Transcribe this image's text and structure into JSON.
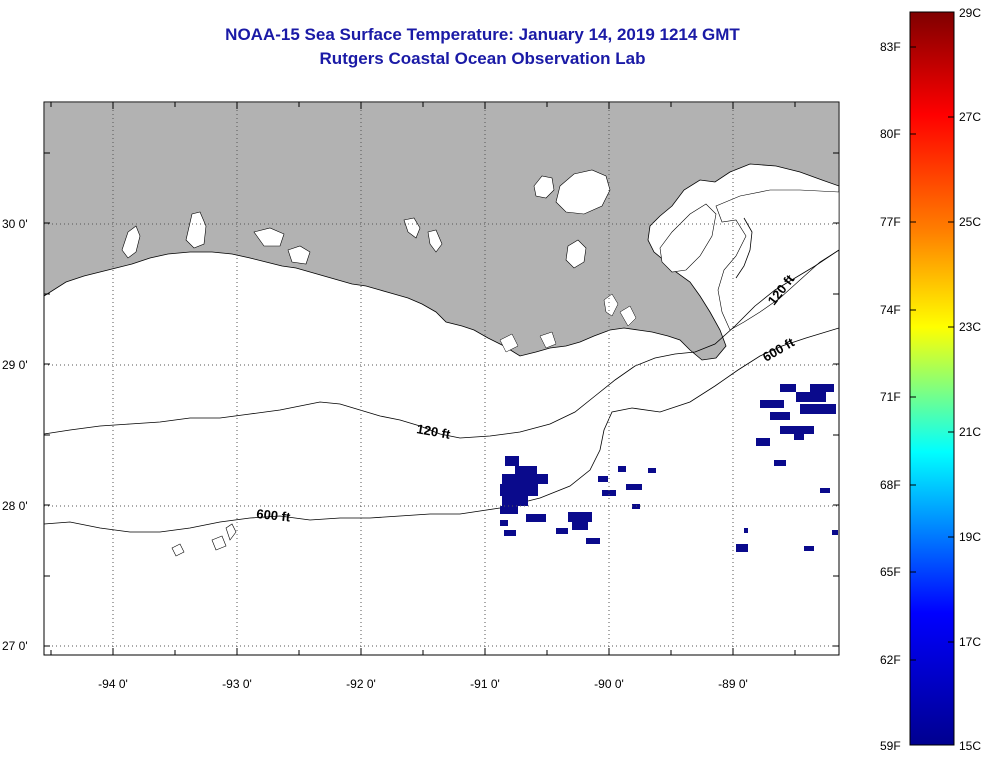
{
  "header": {
    "title": "NOAA-15 Sea Surface Temperature:  January 14, 2019 1214 GMT",
    "subtitle": "Rutgers Coastal Ocean Observation Lab"
  },
  "map": {
    "region": "Louisiana coast, northern Gulf of Mexico",
    "extent": {
      "lon": [
        -94.55,
        -88.0
      ],
      "lat": [
        26.95,
        30.85
      ]
    },
    "lat_ticks": [
      {
        "value": 30,
        "label": "30 0'"
      },
      {
        "value": 29,
        "label": "29 0'"
      },
      {
        "value": 28,
        "label": "28 0'"
      },
      {
        "value": 27,
        "label": "27 0'"
      }
    ],
    "lon_ticks": [
      {
        "value": -94,
        "label": "-94 0'"
      },
      {
        "value": -93,
        "label": "-93 0'"
      },
      {
        "value": -92,
        "label": "-92 0'"
      },
      {
        "value": -91,
        "label": "-91 0'"
      },
      {
        "value": -90,
        "label": "-90 0'"
      },
      {
        "value": -89,
        "label": "-89 0'"
      }
    ],
    "contour_labels": [
      "120 ft",
      "600 ft",
      "120 ft",
      "600 ft"
    ],
    "land_color": "#b2b2b2",
    "water_color": "#ffffff",
    "sst_pixel_color": "#0a0a8c"
  },
  "colorbar": {
    "fahrenheit_labels": [
      "83F",
      "80F",
      "77F",
      "74F",
      "71F",
      "68F",
      "65F",
      "62F",
      "59F"
    ],
    "celsius_labels": [
      "29C",
      "27C",
      "25C",
      "23C",
      "21C",
      "19C",
      "17C",
      "15C"
    ],
    "colors": [
      "#7f0000",
      "#ff0000",
      "#ff8000",
      "#ffff00",
      "#00ffff",
      "#0000ff",
      "#00008f"
    ]
  }
}
